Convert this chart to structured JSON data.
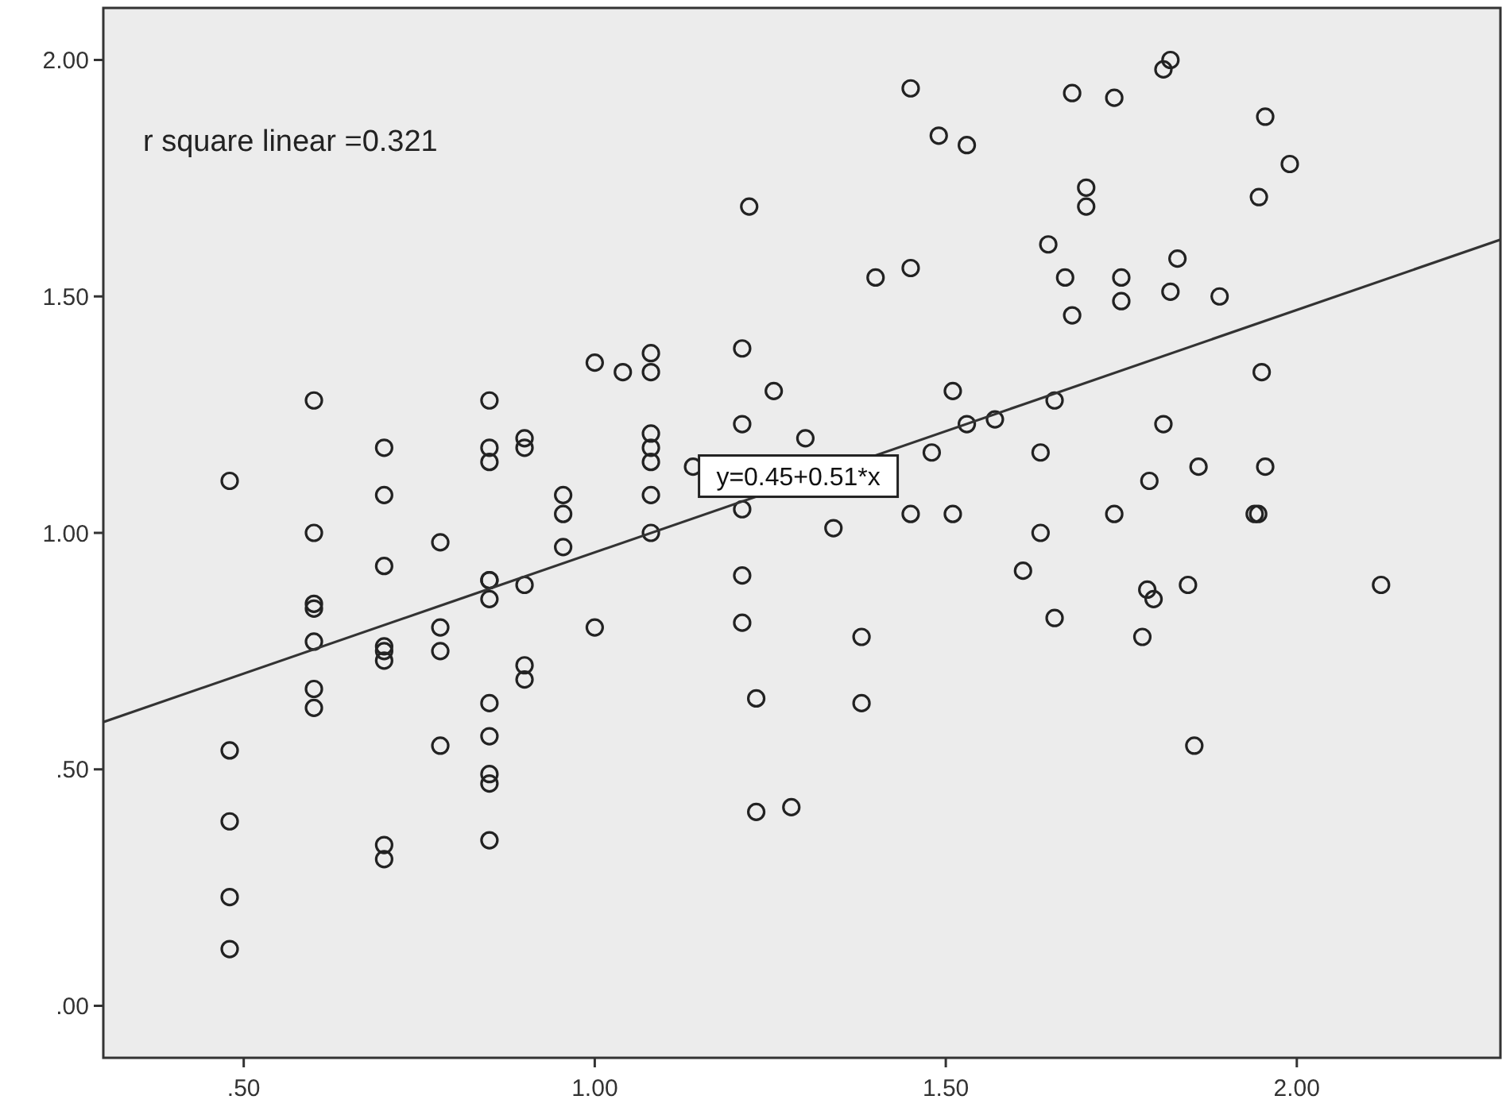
{
  "chart_data": {
    "type": "scatter",
    "xlim": [
      0.3,
      2.29
    ],
    "ylim": [
      -0.11,
      2.11
    ],
    "xticks": [
      {
        "value": 0.5,
        "label": ".50"
      },
      {
        "value": 1,
        "label": "1.00"
      },
      {
        "value": 1.5,
        "label": "1.50"
      },
      {
        "value": 2,
        "label": "2.00"
      }
    ],
    "yticks": [
      {
        "value": 0,
        "label": ".00"
      },
      {
        "value": 0.5,
        "label": ".50"
      },
      {
        "value": 1,
        "label": "1.00"
      },
      {
        "value": 1.5,
        "label": "1.50"
      },
      {
        "value": 2,
        "label": "2.00"
      }
    ],
    "annotations": [
      "r square linear =0.321",
      {
        "text": "y=0.45+0.51*x",
        "x": 1.29,
        "y": 1.12
      }
    ],
    "series": [
      {
        "marker": "circle",
        "color": "#222222",
        "x": [
          0.48,
          0.48,
          0.48,
          0.48,
          0.48,
          0.6,
          0.6,
          0.6,
          0.6,
          0.6,
          0.6,
          0.6,
          0.7,
          0.7,
          0.7,
          0.7,
          0.7,
          0.7,
          0.7,
          0.7,
          0.78,
          0.78,
          0.78,
          0.78,
          0.85,
          0.85,
          0.85,
          0.85,
          0.85,
          0.85,
          0.85,
          0.85,
          0.85,
          0.85,
          0.85,
          0.9,
          0.9,
          0.9,
          0.9,
          0.9,
          0.955,
          0.955,
          0.955,
          1.0,
          1.0,
          1.04,
          1.08,
          1.08,
          1.08,
          1.08,
          1.08,
          1.08,
          1.08,
          1.14,
          1.21,
          1.21,
          1.21,
          1.21,
          1.21,
          1.22,
          1.255,
          1.23,
          1.23,
          1.28,
          1.3,
          1.45,
          1.4,
          1.45,
          1.49,
          1.53,
          1.68,
          1.74,
          1.82,
          1.81,
          1.955,
          1.99,
          1.946,
          1.7,
          1.7,
          1.646,
          1.67,
          1.75,
          1.75,
          1.68,
          1.83,
          1.82,
          1.89,
          1.95,
          1.51,
          1.655,
          1.53,
          1.57,
          1.48,
          1.635,
          1.81,
          1.79,
          1.86,
          1.955,
          1.45,
          1.51,
          1.34,
          1.635,
          1.74,
          1.94,
          1.945,
          1.61,
          1.655,
          1.787,
          1.796,
          1.845,
          1.78,
          2.12,
          1.854,
          1.38,
          1.38
        ],
        "values": [
          1.11,
          0.54,
          0.39,
          0.23,
          0.12,
          1.28,
          1.0,
          0.85,
          0.84,
          0.77,
          0.67,
          0.63,
          1.18,
          1.08,
          0.93,
          0.76,
          0.75,
          0.73,
          0.34,
          0.31,
          0.98,
          0.8,
          0.75,
          0.55,
          1.28,
          1.18,
          1.15,
          0.9,
          0.9,
          0.86,
          0.64,
          0.57,
          0.49,
          0.47,
          0.35,
          1.2,
          1.18,
          0.89,
          0.72,
          0.69,
          1.08,
          1.04,
          0.97,
          1.36,
          0.8,
          1.34,
          1.38,
          1.34,
          1.21,
          1.18,
          1.15,
          1.08,
          1.0,
          1.14,
          1.39,
          1.23,
          1.05,
          0.91,
          0.81,
          1.69,
          1.3,
          0.65,
          0.41,
          0.42,
          1.2,
          1.94,
          1.54,
          1.56,
          1.84,
          1.82,
          1.93,
          1.92,
          2.0,
          1.98,
          1.88,
          1.78,
          1.71,
          1.73,
          1.69,
          1.61,
          1.54,
          1.54,
          1.49,
          1.46,
          1.58,
          1.51,
          1.5,
          1.34,
          1.3,
          1.28,
          1.23,
          1.24,
          1.17,
          1.17,
          1.23,
          1.11,
          1.14,
          1.14,
          1.04,
          1.04,
          1.01,
          1.0,
          1.04,
          1.04,
          1.04,
          0.92,
          0.82,
          0.88,
          0.86,
          0.89,
          0.78,
          0.89,
          0.55,
          0.78,
          0.64
        ]
      },
      {
        "type": "line",
        "color": "#333333",
        "x": [
          0.3,
          2.29
        ],
        "values": [
          0.6,
          1.62
        ]
      }
    ]
  }
}
